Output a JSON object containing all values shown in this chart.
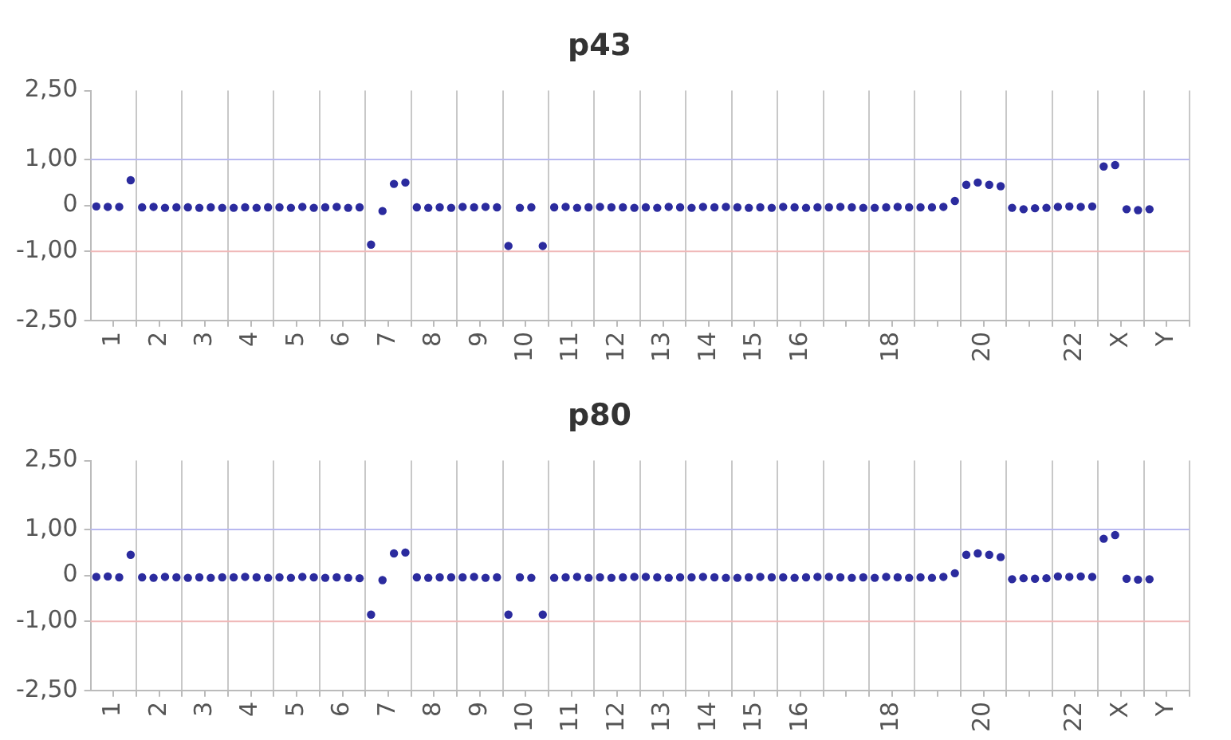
{
  "chart_data": [
    {
      "type": "scatter",
      "title": "p43",
      "ylim": [
        -2.5,
        2.5
      ],
      "categories": [
        "1",
        "2",
        "3",
        "4",
        "5",
        "6",
        "7",
        "8",
        "9",
        "10",
        "11",
        "12",
        "13",
        "14",
        "15",
        "16",
        null,
        "18",
        null,
        "20",
        null,
        "22",
        "X",
        "Y"
      ],
      "yticks": [
        {
          "value": 2.5,
          "label": "2,50"
        },
        {
          "value": 1,
          "label": "1,00"
        },
        0,
        {
          "value": -1,
          "label": "-1,00"
        },
        {
          "value": -2.5,
          "label": "-2,50"
        }
      ],
      "grid": "x",
      "marker": "circle",
      "ref_lines": [
        {
          "axis": "y",
          "value": 1,
          "color": "#b8b8f0"
        },
        {
          "axis": "y",
          "value": -1,
          "color": "#f0b8b8"
        }
      ],
      "series": [
        {
          "color": "#2b2b9e",
          "values": [
            -0.02,
            -0.04,
            -0.04,
            -0.05,
            -0.04,
            -0.04,
            -0.85,
            -0.04,
            -0.03,
            -0.88,
            -0.04,
            -0.03,
            -0.04,
            -0.05,
            -0.04,
            -0.03,
            -0.04,
            -0.05,
            -0.04,
            0.45,
            -0.05,
            -0.03,
            0.85,
            -0.08
          ]
        },
        {
          "color": "#2b2b9e",
          "values": [
            -0.03,
            -0.03,
            -0.05,
            -0.04,
            -0.05,
            -0.03,
            -0.12,
            -0.05,
            -0.04,
            -0.05,
            -0.03,
            -0.04,
            -0.05,
            -0.03,
            -0.05,
            -0.04,
            -0.03,
            -0.04,
            -0.04,
            0.5,
            -0.08,
            -0.02,
            0.88,
            null
          ]
        },
        {
          "color": "#2b2b9e",
          "values": [
            -0.03,
            -0.05,
            -0.04,
            -0.05,
            -0.03,
            -0.05,
            0.47,
            -0.04,
            -0.03,
            -0.04,
            -0.05,
            -0.04,
            -0.03,
            -0.04,
            -0.04,
            -0.05,
            -0.04,
            -0.03,
            -0.03,
            0.45,
            -0.06,
            -0.03,
            -0.08,
            null
          ]
        },
        {
          "color": "#2b2b9e",
          "values": [
            0.55,
            -0.04,
            -0.05,
            -0.04,
            -0.05,
            -0.04,
            0.5,
            -0.05,
            -0.04,
            -0.88,
            -0.04,
            -0.05,
            -0.04,
            -0.03,
            -0.05,
            -0.04,
            -0.05,
            -0.04,
            0.1,
            0.42,
            -0.05,
            -0.02,
            -0.1,
            null
          ]
        }
      ]
    },
    {
      "type": "scatter",
      "title": "p80",
      "ylim": [
        -2.5,
        2.5
      ],
      "categories": [
        "1",
        "2",
        "3",
        "4",
        "5",
        "6",
        "7",
        "8",
        "9",
        "10",
        "11",
        "12",
        "13",
        "14",
        "15",
        "16",
        null,
        "18",
        null,
        "20",
        null,
        "22",
        "X",
        "Y"
      ],
      "yticks": [
        {
          "value": 2.5,
          "label": "2,50"
        },
        {
          "value": 1,
          "label": "1,00"
        },
        0,
        {
          "value": -1,
          "label": "-1,00"
        },
        {
          "value": -2.5,
          "label": "-2,50"
        }
      ],
      "grid": "x",
      "marker": "circle",
      "ref_lines": [
        {
          "axis": "y",
          "value": 1,
          "color": "#b8b8f0"
        },
        {
          "axis": "y",
          "value": -1,
          "color": "#f0b8b8"
        }
      ],
      "series": [
        {
          "color": "#2b2b9e",
          "values": [
            -0.03,
            -0.04,
            -0.05,
            -0.04,
            -0.04,
            -0.05,
            -0.85,
            -0.04,
            -0.04,
            -0.85,
            -0.05,
            -0.04,
            -0.03,
            -0.04,
            -0.05,
            -0.04,
            -0.03,
            -0.05,
            -0.04,
            0.45,
            -0.08,
            -0.02,
            0.8,
            -0.08
          ]
        },
        {
          "color": "#2b2b9e",
          "values": [
            -0.02,
            -0.05,
            -0.04,
            -0.03,
            -0.05,
            -0.04,
            -0.1,
            -0.05,
            -0.03,
            -0.04,
            -0.04,
            -0.05,
            -0.04,
            -0.03,
            -0.04,
            -0.05,
            -0.04,
            -0.03,
            -0.05,
            0.48,
            -0.06,
            -0.03,
            0.88,
            null
          ]
        },
        {
          "color": "#2b2b9e",
          "values": [
            -0.04,
            -0.03,
            -0.05,
            -0.04,
            -0.03,
            -0.05,
            0.48,
            -0.04,
            -0.05,
            -0.05,
            -0.03,
            -0.04,
            -0.05,
            -0.04,
            -0.03,
            -0.04,
            -0.05,
            -0.04,
            -0.03,
            0.45,
            -0.07,
            -0.02,
            -0.07,
            null
          ]
        },
        {
          "color": "#2b2b9e",
          "values": [
            0.45,
            -0.04,
            -0.04,
            -0.05,
            -0.04,
            -0.06,
            0.5,
            -0.04,
            -0.04,
            -0.85,
            -0.05,
            -0.03,
            -0.04,
            -0.05,
            -0.04,
            -0.03,
            -0.04,
            -0.05,
            0.05,
            0.4,
            -0.06,
            -0.03,
            -0.09,
            null
          ]
        }
      ]
    }
  ]
}
